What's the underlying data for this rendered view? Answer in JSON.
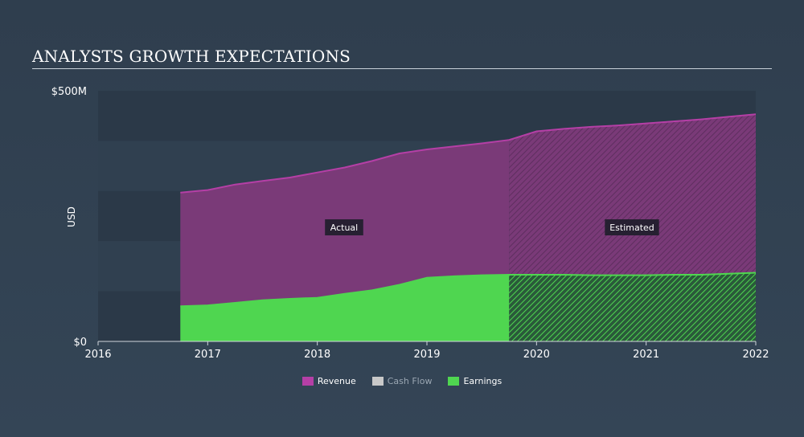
{
  "title": "ANALYSTS GROWTH EXPECTATIONS",
  "colors": {
    "revenue": "#b53fa6",
    "cashflow": "#c8c8c8",
    "earnings": "#4fd650",
    "band_dark": "#2b3948",
    "band_light": "#304050"
  },
  "legend": [
    {
      "key": "revenue",
      "label": "Revenue",
      "muted": false
    },
    {
      "key": "cashflow",
      "label": "Cash Flow",
      "muted": true
    },
    {
      "key": "earnings",
      "label": "Earnings",
      "muted": false
    }
  ],
  "chart_data": {
    "type": "area",
    "title": "ANALYSTS GROWTH EXPECTATIONS",
    "ylabel": "USD",
    "ylim": [
      0,
      500
    ],
    "xlim": [
      2016,
      2022.0
    ],
    "y_tick_labels": [
      {
        "v": 0,
        "label": "$0"
      },
      {
        "v": 500,
        "label": "$500M"
      }
    ],
    "x_ticks": [
      2016,
      2017,
      2018,
      2019,
      2020,
      2021,
      2022
    ],
    "actual_end": 2019.75,
    "regions": {
      "actual": "Actual",
      "estimated": "Estimated"
    },
    "series": [
      {
        "name": "Revenue",
        "key": "revenue",
        "points": [
          [
            2016.75,
            297
          ],
          [
            2017.0,
            302
          ],
          [
            2017.25,
            313
          ],
          [
            2017.5,
            320
          ],
          [
            2017.75,
            327
          ],
          [
            2018.0,
            337
          ],
          [
            2018.25,
            347
          ],
          [
            2018.5,
            360
          ],
          [
            2018.75,
            375
          ],
          [
            2019.0,
            383
          ],
          [
            2019.25,
            389
          ],
          [
            2019.5,
            395
          ],
          [
            2019.75,
            402
          ],
          [
            2020.0,
            419
          ],
          [
            2020.25,
            424
          ],
          [
            2020.5,
            428
          ],
          [
            2020.75,
            431
          ],
          [
            2021.0,
            435
          ],
          [
            2021.25,
            439
          ],
          [
            2021.5,
            443
          ],
          [
            2021.75,
            448
          ],
          [
            2022.0,
            453
          ]
        ]
      },
      {
        "name": "Earnings",
        "key": "earnings",
        "points": [
          [
            2016.75,
            70
          ],
          [
            2017.0,
            72
          ],
          [
            2017.25,
            77
          ],
          [
            2017.5,
            82
          ],
          [
            2017.75,
            85
          ],
          [
            2018.0,
            87
          ],
          [
            2018.25,
            95
          ],
          [
            2018.5,
            102
          ],
          [
            2018.75,
            113
          ],
          [
            2019.0,
            127
          ],
          [
            2019.25,
            130
          ],
          [
            2019.5,
            132
          ],
          [
            2019.75,
            133
          ],
          [
            2020.0,
            133
          ],
          [
            2020.25,
            133
          ],
          [
            2020.5,
            132
          ],
          [
            2020.75,
            132
          ],
          [
            2021.0,
            132
          ],
          [
            2021.25,
            133
          ],
          [
            2021.5,
            133
          ],
          [
            2021.75,
            135
          ],
          [
            2022.0,
            137
          ]
        ]
      }
    ]
  }
}
